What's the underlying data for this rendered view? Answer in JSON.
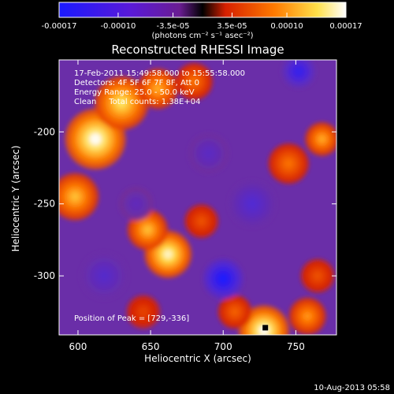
{
  "chart_data": {
    "type": "heatmap",
    "title": "Reconstructed RHESSI Image",
    "xlabel": "Heliocentric X (arcsec)",
    "ylabel": "Heliocentric Y (arcsec)",
    "xlim": [
      587,
      778
    ],
    "ylim": [
      -341,
      -150
    ],
    "x_ticks": [
      600,
      650,
      700,
      750
    ],
    "y_ticks": [
      -200,
      -250,
      -300
    ],
    "grid": false,
    "colorbar": {
      "min": -0.00017,
      "max": 0.00017,
      "tick_values": [
        -0.00017,
        -0.0001,
        -3.5e-05,
        3.5e-05,
        0.0001,
        0.00017
      ],
      "tick_labels": [
        "-0.00017",
        "-0.00010",
        "-3.5e-05",
        "3.5e-05",
        "0.00010",
        "0.00017"
      ],
      "unit_label": "(photons cm⁻² s⁻¹ asec⁻²)"
    },
    "annotations": [
      "17-Feb-2011 15:49:58.000 to 15:55:58.000",
      "Detectors: 4F 5F 6F 7F 8F, Att 0",
      "Energy Range: 25.0 - 50.0 keV",
      "Clean     Total counts: 1.38E+04"
    ],
    "peak_label": "Position of Peak = [729,-336]",
    "peak": [
      729,
      -336
    ],
    "blobs": [
      {
        "x": 612,
        "y": -205,
        "v": 0.00017,
        "r": 18
      },
      {
        "x": 630,
        "y": -180,
        "v": 0.00014,
        "r": 16
      },
      {
        "x": 598,
        "y": -245,
        "v": 0.00012,
        "r": 14
      },
      {
        "x": 655,
        "y": -170,
        "v": 0.00011,
        "r": 12
      },
      {
        "x": 680,
        "y": -165,
        "v": 8e-05,
        "r": 11
      },
      {
        "x": 662,
        "y": -285,
        "v": 0.00016,
        "r": 14
      },
      {
        "x": 648,
        "y": -268,
        "v": 0.00012,
        "r": 12
      },
      {
        "x": 685,
        "y": -262,
        "v": 6e-05,
        "r": 10
      },
      {
        "x": 645,
        "y": -325,
        "v": 5e-05,
        "r": 10
      },
      {
        "x": 728,
        "y": -338,
        "v": 0.00017,
        "r": 15
      },
      {
        "x": 758,
        "y": -328,
        "v": 0.0001,
        "r": 11
      },
      {
        "x": 708,
        "y": -325,
        "v": 7e-05,
        "r": 10
      },
      {
        "x": 745,
        "y": -222,
        "v": 8e-05,
        "r": 12
      },
      {
        "x": 768,
        "y": -205,
        "v": 0.00011,
        "r": 10
      },
      {
        "x": 765,
        "y": -300,
        "v": 6e-05,
        "r": 10
      },
      {
        "x": 700,
        "y": -302,
        "v": -0.00017,
        "r": 12
      },
      {
        "x": 752,
        "y": -158,
        "v": -0.00013,
        "r": 10
      },
      {
        "x": 720,
        "y": -250,
        "v": -8e-05,
        "r": 14
      },
      {
        "x": 618,
        "y": -300,
        "v": -7e-05,
        "r": 14
      },
      {
        "x": 690,
        "y": -215,
        "v": -6e-05,
        "r": 12
      },
      {
        "x": 640,
        "y": -250,
        "v": -5e-05,
        "r": 10
      }
    ]
  },
  "footer": {
    "timestamp": "10-Aug-2013 05:58"
  }
}
